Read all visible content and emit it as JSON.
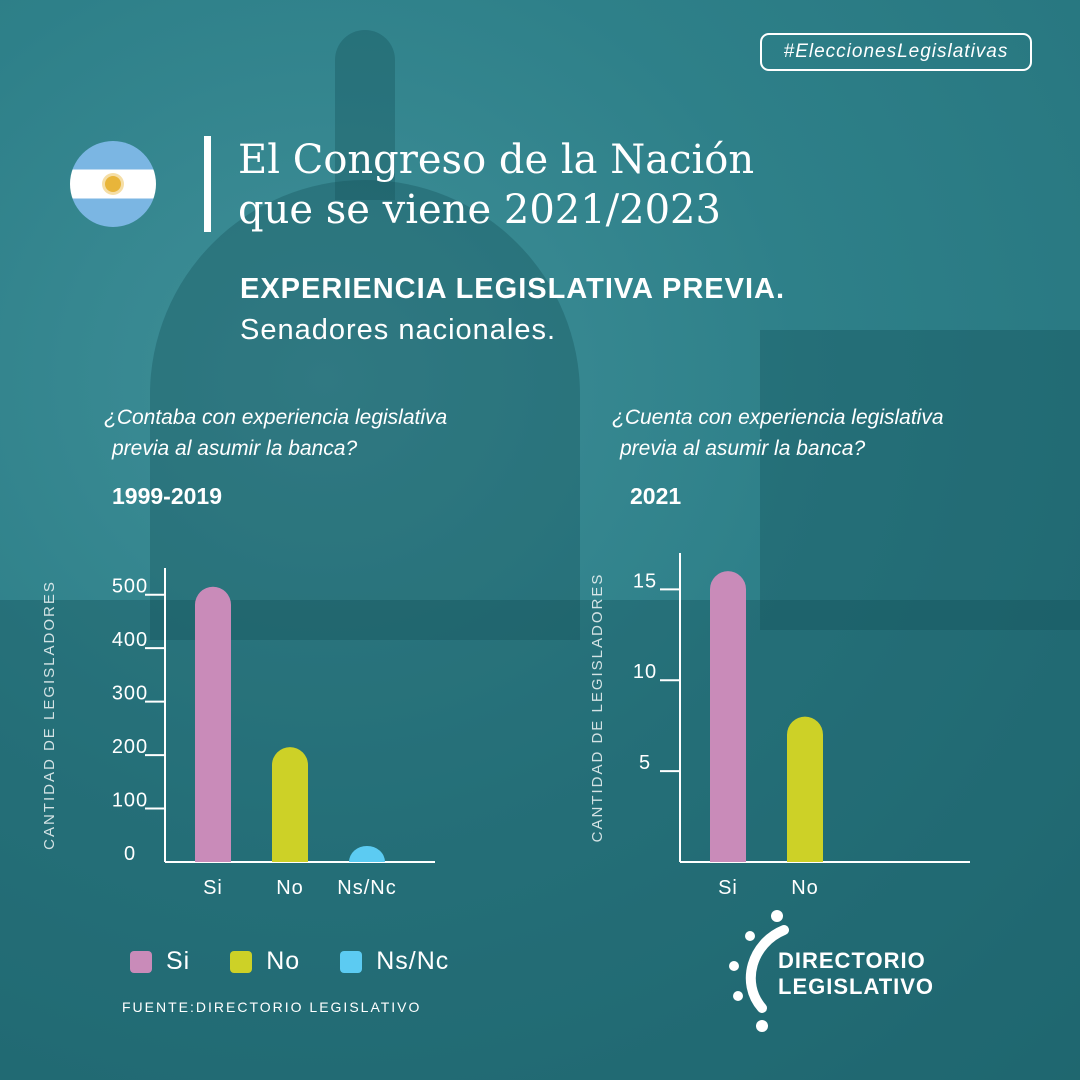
{
  "hashtag": "#EleccionesLegislativas",
  "title": {
    "line1": "El Congreso de la Nación",
    "line2": "que se viene 2021/2023"
  },
  "subtitle": {
    "heading": "EXPERIENCIA LEGISLATIVA PREVIA.",
    "subheading": "Senadores nacionales."
  },
  "charts_text": [
    {
      "question_line1": "¿Contaba con experiencia legislativa",
      "question_line2": "previa al asumir la banca?",
      "period": "1999-2019"
    },
    {
      "question_line1": "¿Cuenta con experiencia legislativa",
      "question_line2": "previa al asumir la banca?",
      "period": "2021"
    }
  ],
  "colors": {
    "background": "#2e8089",
    "si": "#c98bb9",
    "no": "#cdd127",
    "nsnc": "#5ccbf2"
  },
  "legend": [
    "Si",
    "No",
    "Ns/Nc"
  ],
  "source": "FUENTE:DIRECTORIO LEGISLATIVO",
  "logo": {
    "line1": "DIRECTORIO",
    "line2": "LEGISLATIVO"
  },
  "chart_data": [
    {
      "type": "bar",
      "title": "1999-2019",
      "categories": [
        "Si",
        "No",
        "Ns/Nc"
      ],
      "values": [
        515,
        215,
        30
      ],
      "ylabel": "CANTIDAD DE LEGISLADORES",
      "xlabel": "",
      "ylim": [
        0,
        550
      ],
      "yticks": [
        0,
        100,
        200,
        300,
        400,
        500
      ],
      "grid": false,
      "legend": "bottom"
    },
    {
      "type": "bar",
      "title": "2021",
      "categories": [
        "Si",
        "No"
      ],
      "values": [
        16,
        8
      ],
      "ylabel": "CANTIDAD DE LEGISLADORES",
      "xlabel": "",
      "ylim": [
        0,
        17
      ],
      "yticks": [
        5,
        10,
        15
      ],
      "grid": false,
      "legend": "bottom"
    }
  ]
}
